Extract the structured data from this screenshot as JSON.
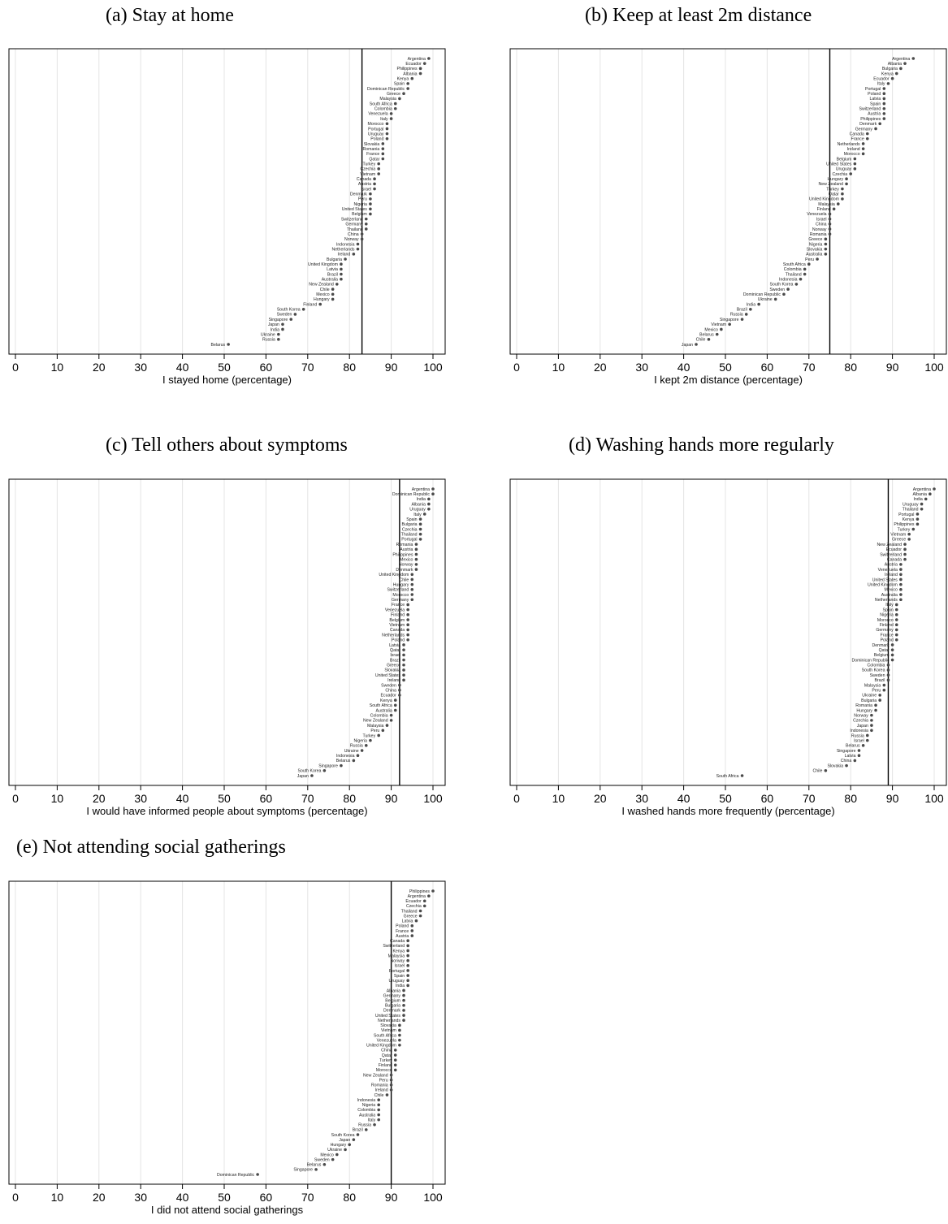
{
  "chart_data": [
    {
      "type": "scatter",
      "title": "(a) Stay at home",
      "xlabel": "I stayed home (percentage)",
      "xlim": [
        0,
        100
      ],
      "xticks": [
        0,
        10,
        20,
        30,
        40,
        50,
        60,
        70,
        80,
        90,
        100
      ],
      "grid": true,
      "reference_line": 83,
      "countries": [
        "Argentina",
        "Ecuador",
        "Philippines",
        "Albania",
        "Kenya",
        "Spain",
        "Dominican Republic",
        "Greece",
        "Malaysia",
        "South Africa",
        "Colombia",
        "Venezuela",
        "Italy",
        "Morocco",
        "Portugal",
        "Uruguay",
        "Poland",
        "Slovakia",
        "Romania",
        "France",
        "Qatar",
        "Turkey",
        "Czechia",
        "Vietnam",
        "Canada",
        "Austria",
        "Israel",
        "Denmark",
        "Peru",
        "Nigeria",
        "United States",
        "Belgium",
        "Switzerland",
        "Germany",
        "Thailand",
        "China",
        "Norway",
        "Indonesia",
        "Netherlands",
        "Ireland",
        "Bulgaria",
        "United Kingdom",
        "Latvia",
        "Brazil",
        "Australia",
        "New Zealand",
        "Chile",
        "Mexico",
        "Hungary",
        "Finland",
        "South Korea",
        "Sweden",
        "Singapore",
        "Japan",
        "India",
        "Ukraine",
        "Russia",
        "Belarus"
      ],
      "values": [
        99,
        98,
        97,
        97,
        95,
        94,
        94,
        93,
        92,
        91,
        91,
        90,
        90,
        89,
        89,
        89,
        89,
        88,
        88,
        88,
        88,
        87,
        87,
        87,
        86,
        86,
        86,
        85,
        85,
        85,
        85,
        85,
        84,
        84,
        84,
        83,
        83,
        82,
        82,
        81,
        79,
        78,
        78,
        78,
        78,
        77,
        76,
        76,
        76,
        73,
        69,
        67,
        66,
        64,
        64,
        63,
        63,
        51
      ]
    },
    {
      "type": "scatter",
      "title": "(b) Keep at least 2m distance",
      "xlabel": "I kept 2m distance (percentage)",
      "xlim": [
        0,
        100
      ],
      "xticks": [
        0,
        10,
        20,
        30,
        40,
        50,
        60,
        70,
        80,
        90,
        100
      ],
      "grid": true,
      "reference_line": 75,
      "countries": [
        "Argentina",
        "Albania",
        "Bulgaria",
        "Kenya",
        "Ecuador",
        "Italy",
        "Portugal",
        "Poland",
        "Latvia",
        "Spain",
        "Switzerland",
        "Austria",
        "Philippines",
        "Denmark",
        "Germany",
        "Canada",
        "France",
        "Netherlands",
        "Ireland",
        "Morocco",
        "Belgium",
        "United States",
        "Uruguay",
        "Czechia",
        "Hungary",
        "New Zealand",
        "Turkey",
        "Qatar",
        "United Kingdom",
        "Malaysia",
        "Finland",
        "Venezuela",
        "Israel",
        "China",
        "Norway",
        "Romania",
        "Greece",
        "Nigeria",
        "Slovakia",
        "Australia",
        "Peru",
        "South Africa",
        "Colombia",
        "Thailand",
        "Indonesia",
        "South Korea",
        "Sweden",
        "Dominican Republic",
        "Ukraine",
        "India",
        "Brazil",
        "Russia",
        "Singapore",
        "Vietnam",
        "Mexico",
        "Belarus",
        "Chile",
        "Japan"
      ],
      "values": [
        95,
        93,
        92,
        91,
        90,
        89,
        88,
        88,
        88,
        88,
        88,
        88,
        88,
        87,
        86,
        84,
        84,
        83,
        83,
        83,
        81,
        81,
        81,
        80,
        79,
        79,
        78,
        78,
        78,
        77,
        76,
        75,
        75,
        75,
        75,
        75,
        74,
        74,
        74,
        74,
        72,
        70,
        69,
        69,
        68,
        67,
        65,
        64,
        62,
        58,
        56,
        55,
        54,
        51,
        49,
        48,
        46,
        43
      ]
    },
    {
      "type": "scatter",
      "title": "(c) Tell others about symptoms",
      "xlabel": "I would have informed people about symptoms (percentage)",
      "xlim": [
        0,
        100
      ],
      "xticks": [
        0,
        10,
        20,
        30,
        40,
        50,
        60,
        70,
        80,
        90,
        100
      ],
      "grid": true,
      "reference_line": 92,
      "countries": [
        "Argentina",
        "Dominican Republic",
        "India",
        "Albania",
        "Uruguay",
        "Italy",
        "Spain",
        "Bulgaria",
        "Czechia",
        "Thailand",
        "Portugal",
        "Romania",
        "Austria",
        "Philippines",
        "Mexico",
        "Norway",
        "Denmark",
        "United Kingdom",
        "Chile",
        "Hungary",
        "Switzerland",
        "Morocco",
        "Germany",
        "France",
        "Venezuela",
        "Finland",
        "Belgium",
        "Vietnam",
        "Canada",
        "Netherlands",
        "Poland",
        "Latvia",
        "Qatar",
        "Israel",
        "Brazil",
        "Greece",
        "Slovakia",
        "United States",
        "Ireland",
        "Sweden",
        "China",
        "Ecuador",
        "Kenya",
        "South Africa",
        "Australia",
        "Colombia",
        "New Zealand",
        "Malaysia",
        "Peru",
        "Turkey",
        "Nigeria",
        "Russia",
        "Ukraine",
        "Indonesia",
        "Belarus",
        "Singapore",
        "South Korea",
        "Japan"
      ],
      "values": [
        100,
        100,
        99,
        99,
        99,
        98,
        97,
        97,
        97,
        97,
        97,
        96,
        96,
        96,
        96,
        96,
        96,
        95,
        95,
        95,
        95,
        95,
        95,
        94,
        94,
        94,
        94,
        94,
        94,
        94,
        94,
        93,
        93,
        93,
        93,
        93,
        93,
        93,
        93,
        92,
        92,
        92,
        91,
        91,
        91,
        90,
        90,
        89,
        88,
        87,
        85,
        84,
        83,
        82,
        81,
        78,
        74,
        71
      ]
    },
    {
      "type": "scatter",
      "title": "(d) Washing hands more regularly",
      "xlabel": "I washed hands more frequently (percentage)",
      "xlim": [
        0,
        100
      ],
      "xticks": [
        0,
        10,
        20,
        30,
        40,
        50,
        60,
        70,
        80,
        90,
        100
      ],
      "grid": true,
      "reference_line": 89,
      "countries": [
        "Argentina",
        "Albania",
        "India",
        "Uruguay",
        "Thailand",
        "Portugal",
        "Kenya",
        "Philippines",
        "Turkey",
        "Vietnam",
        "Greece",
        "New Zealand",
        "Ecuador",
        "Switzerland",
        "Canada",
        "Austria",
        "Venezuela",
        "Ireland",
        "United States",
        "United Kingdom",
        "Mexico",
        "Australia",
        "Netherlands",
        "Italy",
        "Spain",
        "Nigeria",
        "Morocco",
        "Finland",
        "Germany",
        "France",
        "Poland",
        "Denmark",
        "Qatar",
        "Belgium",
        "Dominican Republic",
        "Colombia",
        "South Korea",
        "Sweden",
        "Brazil",
        "Malaysia",
        "Peru",
        "Ukraine",
        "Bulgaria",
        "Romania",
        "Hungary",
        "Norway",
        "Czechia",
        "Japan",
        "Indonesia",
        "Russia",
        "Israel",
        "Belarus",
        "Singapore",
        "Latvia",
        "China",
        "Slovakia",
        "Chile",
        "South Africa"
      ],
      "values": [
        100,
        99,
        98,
        97,
        97,
        96,
        96,
        96,
        95,
        94,
        94,
        93,
        93,
        93,
        93,
        92,
        92,
        92,
        92,
        92,
        92,
        92,
        92,
        91,
        91,
        91,
        91,
        91,
        91,
        91,
        91,
        90,
        90,
        90,
        90,
        89,
        89,
        89,
        89,
        88,
        88,
        87,
        87,
        86,
        86,
        85,
        85,
        85,
        85,
        84,
        84,
        83,
        82,
        82,
        81,
        79,
        74,
        54
      ]
    },
    {
      "type": "scatter",
      "title": "(e) Not attending social gatherings",
      "xlabel": "I did not attend social gatherings",
      "xlim": [
        0,
        100
      ],
      "xticks": [
        0,
        10,
        20,
        30,
        40,
        50,
        60,
        70,
        80,
        90,
        100
      ],
      "grid": true,
      "reference_line": 90,
      "countries": [
        "Philippines",
        "Argentina",
        "Ecuador",
        "Czechia",
        "Thailand",
        "Greece",
        "Latvia",
        "Poland",
        "France",
        "Austria",
        "Canada",
        "Switzerland",
        "Kenya",
        "Malaysia",
        "Norway",
        "Israel",
        "Portugal",
        "Spain",
        "Uruguay",
        "India",
        "Albania",
        "Germany",
        "Belgium",
        "Bulgaria",
        "Denmark",
        "United States",
        "Netherlands",
        "Slovakia",
        "Vietnam",
        "South Africa",
        "Venezuela",
        "United Kingdom",
        "China",
        "Qatar",
        "Turkey",
        "Finland",
        "Morocco",
        "New Zealand",
        "Peru",
        "Romania",
        "Ireland",
        "Chile",
        "Indonesia",
        "Nigeria",
        "Colombia",
        "Australia",
        "Italy",
        "Russia",
        "Brazil",
        "South Korea",
        "Japan",
        "Hungary",
        "Ukraine",
        "Mexico",
        "Sweden",
        "Belarus",
        "Singapore",
        "Dominican Republic"
      ],
      "values": [
        100,
        99,
        98,
        98,
        97,
        97,
        96,
        95,
        95,
        95,
        94,
        94,
        94,
        94,
        94,
        94,
        94,
        94,
        94,
        94,
        93,
        93,
        93,
        93,
        93,
        93,
        93,
        92,
        92,
        92,
        92,
        92,
        91,
        91,
        91,
        91,
        91,
        90,
        90,
        90,
        90,
        89,
        87,
        87,
        87,
        87,
        87,
        86,
        84,
        82,
        81,
        80,
        79,
        77,
        76,
        74,
        72,
        58
      ]
    }
  ]
}
